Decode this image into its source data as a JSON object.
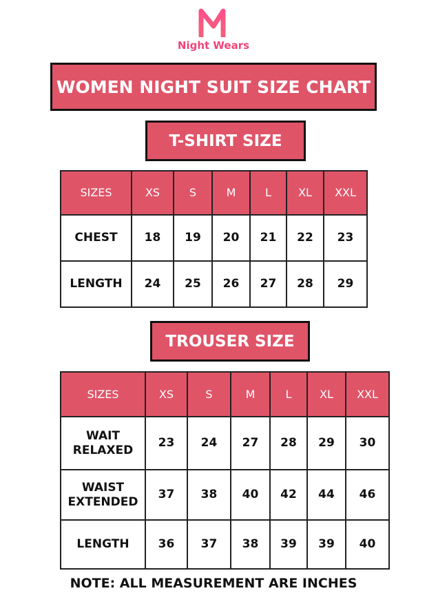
{
  "brand": {
    "name": "Night Wears",
    "color": "#f0457a",
    "icon": "night-wears-n-logo"
  },
  "title": "WOMEN NIGHT SUIT SIZE CHART",
  "accent_color": "#e05468",
  "tshirt": {
    "heading": "T-SHIRT SIZE",
    "header": [
      "SIZES",
      "XS",
      "S",
      "M",
      "L",
      "XL",
      "XXL"
    ],
    "rows": [
      [
        "CHEST",
        "18",
        "19",
        "20",
        "21",
        "22",
        "23"
      ],
      [
        "LENGTH",
        "24",
        "25",
        "26",
        "27",
        "28",
        "29"
      ]
    ]
  },
  "trouser": {
    "heading": "TROUSER SIZE",
    "header": [
      "SIZES",
      "XS",
      "S",
      "M",
      "L",
      "XL",
      "XXL"
    ],
    "rows": [
      [
        "WAIT RELAXED",
        "23",
        "24",
        "27",
        "28",
        "29",
        "30"
      ],
      [
        "WAIST EXTENDED",
        "37",
        "38",
        "40",
        "42",
        "44",
        "46"
      ],
      [
        "LENGTH",
        "36",
        "37",
        "38",
        "39",
        "39",
        "40"
      ]
    ]
  },
  "note": "NOTE: ALL MEASUREMENT ARE INCHES"
}
